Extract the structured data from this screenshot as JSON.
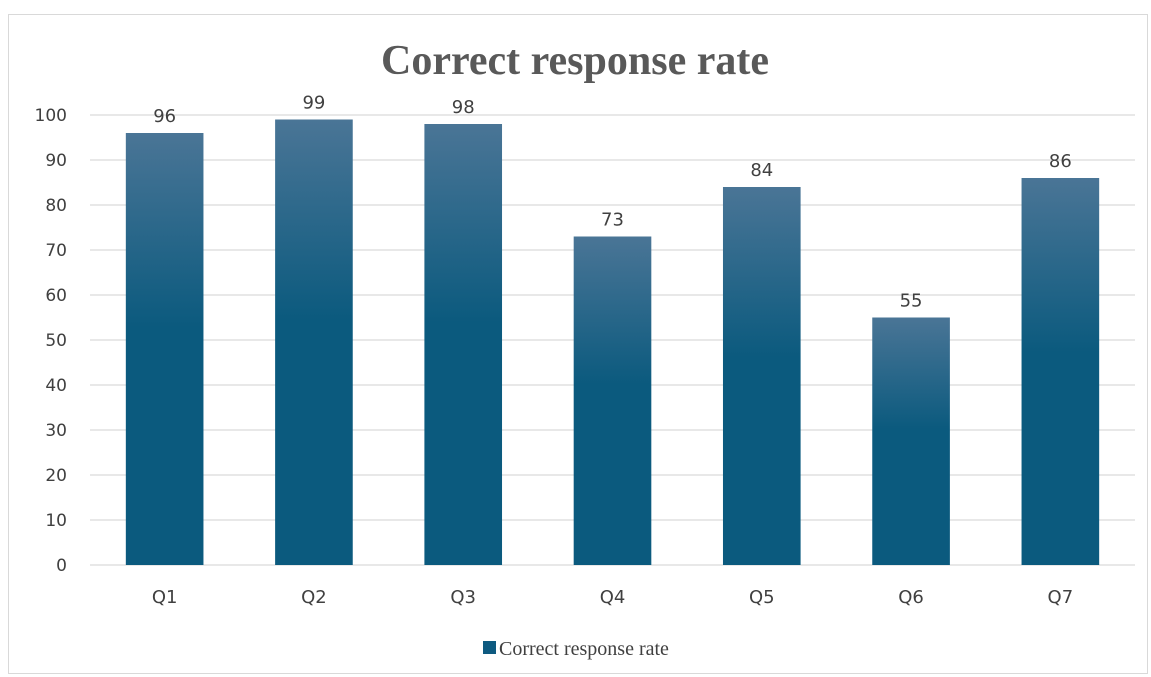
{
  "chart_data": {
    "type": "bar",
    "title": "Correct response rate",
    "categories": [
      "Q1",
      "Q2",
      "Q3",
      "Q4",
      "Q5",
      "Q6",
      "Q7"
    ],
    "series": [
      {
        "name": "Correct response rate",
        "values": [
          96,
          99,
          98,
          73,
          84,
          55,
          86
        ],
        "color": "#0e5a80"
      }
    ],
    "data_labels": [
      "96",
      "99",
      "98",
      "73",
      "84",
      "55",
      "86"
    ],
    "y_ticks": [
      "0",
      "10",
      "20",
      "30",
      "40",
      "50",
      "60",
      "70",
      "80",
      "90",
      "100"
    ],
    "ylim": [
      0,
      100
    ],
    "grid": true,
    "legend_position": "bottom",
    "legend_label": "Correct response rate"
  },
  "colors": {
    "bar_top": "#4a7596",
    "bar_bottom": "#0b5a7e",
    "grid": "#d9d9d9",
    "text": "#404040",
    "title": "#595959"
  }
}
